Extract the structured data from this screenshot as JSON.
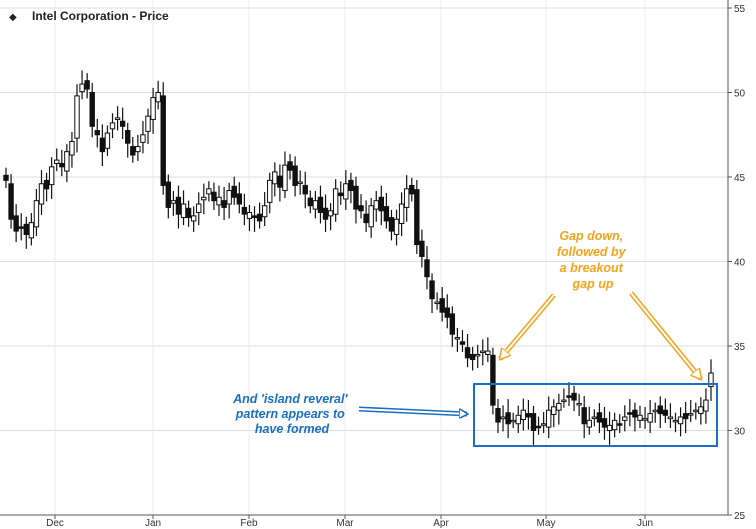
{
  "chart_data": {
    "type": "candlestick",
    "title": "Intel Corporation - Price",
    "legend_marker": "◆",
    "legend_position": "top-left",
    "ylim": [
      25,
      55
    ],
    "y_ticks": [
      25,
      30,
      35,
      40,
      45,
      50,
      55
    ],
    "y_axis_side": "right",
    "x_tick_labels": [
      "Dec",
      "Jan",
      "Feb",
      "Mar",
      "Apr",
      "May",
      "Jun"
    ],
    "grid": true,
    "series_close": [
      44.8,
      42.5,
      41.8,
      42.0,
      41.6,
      42.3,
      43.6,
      44.6,
      44.3,
      45.6,
      46.0,
      45.6,
      46.5,
      47.1,
      49.8,
      50.5,
      50.2,
      48.0,
      47.5,
      46.5,
      47.6,
      48.2,
      48.5,
      48.0,
      47.0,
      46.3,
      46.8,
      47.5,
      48.6,
      49.7,
      50.0,
      44.5,
      43.2,
      43.6,
      42.8,
      43.4,
      42.6,
      42.7,
      43.4,
      43.8,
      44.3,
      43.6,
      43.8,
      43.2,
      44.2,
      43.8,
      43.4,
      42.8,
      42.9,
      42.6,
      42.4,
      43.3,
      44.8,
      45.3,
      44.4,
      45.7,
      45.4,
      44.5,
      44.7,
      44.0,
      43.3,
      43.6,
      42.9,
      42.5,
      43.0,
      44.3,
      43.9,
      44.6,
      44.2,
      43.1,
      43.0,
      42.3,
      43.3,
      43.6,
      43.0,
      42.4,
      41.8,
      42.5,
      43.4,
      44.3,
      44.0,
      41.0,
      40.3,
      39.1,
      37.8,
      37.6,
      37.0,
      36.7,
      35.7,
      35.5,
      35.1,
      34.3,
      34.2,
      34.5,
      34.7,
      34.7,
      31.5,
      30.5,
      30.8,
      30.4,
      30.6,
      30.9,
      31.2,
      30.8,
      30.0,
      30.2,
      30.4,
      31.2,
      31.4,
      31.6,
      31.8,
      32.0,
      31.8,
      31.6,
      30.4,
      30.6,
      30.8,
      30.5,
      30.2,
      30.3,
      30.6,
      30.4,
      30.8,
      31.0,
      30.8,
      30.9,
      30.7,
      31.0,
      31.2,
      31.0,
      30.9,
      30.8,
      30.6,
      30.8,
      30.7,
      31.0,
      31.2,
      31.4,
      31.8,
      33.4
    ],
    "annotations": [
      {
        "id": "island",
        "text_lines": [
          "And 'island reveral'",
          "pattern appears to",
          "have formed"
        ]
      },
      {
        "id": "gaps",
        "text_lines": [
          "Gap down,",
          "followed by",
          "a breakout",
          "gap up"
        ]
      }
    ]
  },
  "colors": {
    "candle": "#111111",
    "grid": "#dcdcdc",
    "annotation_blue": "#1a6fc4",
    "annotation_orange": "#f5a31c"
  }
}
